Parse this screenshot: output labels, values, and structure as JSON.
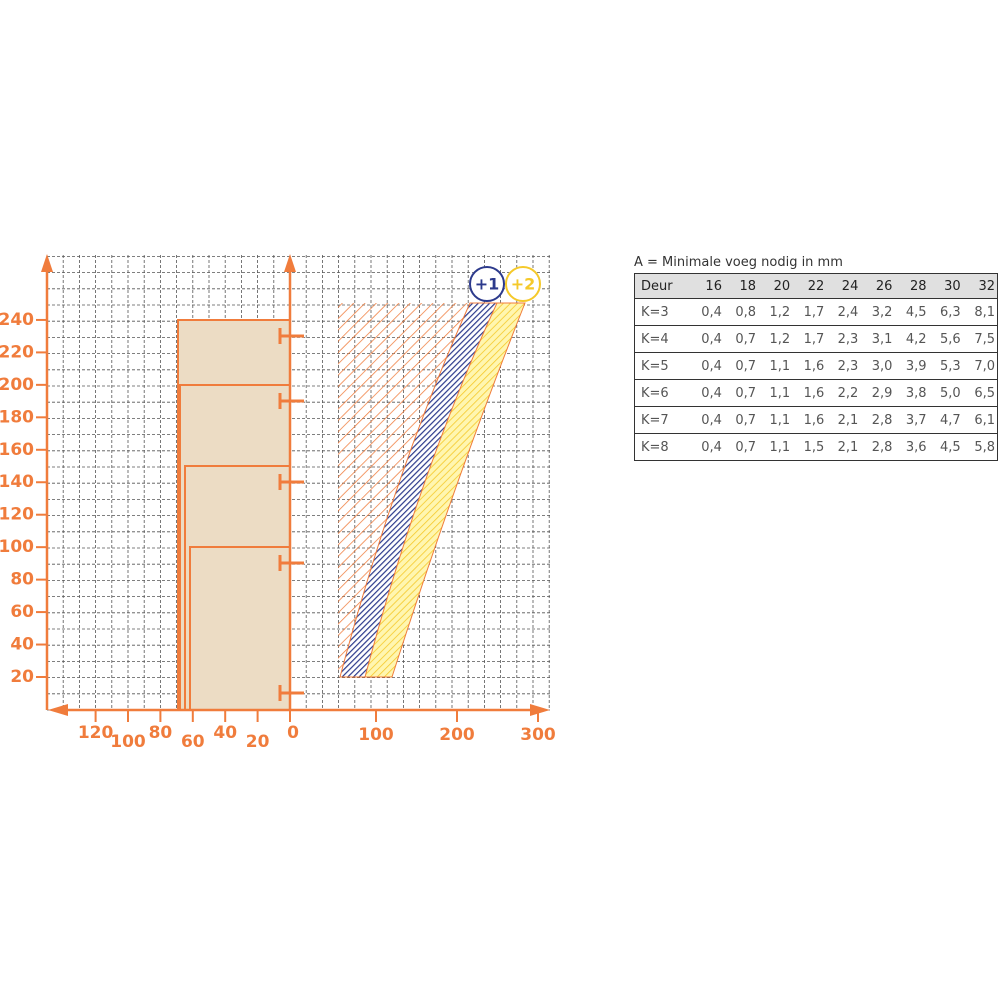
{
  "diagram": {
    "y_ticks": [
      20,
      40,
      60,
      80,
      100,
      120,
      140,
      160,
      180,
      200,
      220,
      240
    ],
    "left_x_ticks": [
      120,
      100,
      80,
      60,
      40,
      20,
      0
    ],
    "right_x_ticks": [
      100,
      200,
      300
    ],
    "badges": [
      "+1",
      "+2"
    ]
  },
  "table": {
    "caption": "A = Minimale voeg nodig in mm",
    "header": [
      "Deur",
      "16",
      "18",
      "20",
      "22",
      "24",
      "26",
      "28",
      "30",
      "32"
    ],
    "rows": [
      [
        "K=3",
        "0,4",
        "0,8",
        "1,2",
        "1,7",
        "2,4",
        "3,2",
        "4,5",
        "6,3",
        "8,1"
      ],
      [
        "K=4",
        "0,4",
        "0,7",
        "1,2",
        "1,7",
        "2,3",
        "3,1",
        "4,2",
        "5,6",
        "7,5"
      ],
      [
        "K=5",
        "0,4",
        "0,7",
        "1,1",
        "1,6",
        "2,3",
        "3,0",
        "3,9",
        "5,3",
        "7,0"
      ],
      [
        "K=6",
        "0,4",
        "0,7",
        "1,1",
        "1,6",
        "2,2",
        "2,9",
        "3,8",
        "5,0",
        "6,5"
      ],
      [
        "K=7",
        "0,4",
        "0,7",
        "1,1",
        "1,6",
        "2,1",
        "2,8",
        "3,7",
        "4,7",
        "6,1"
      ],
      [
        "K=8",
        "0,4",
        "0,7",
        "1,1",
        "1,5",
        "2,1",
        "2,8",
        "3,6",
        "4,5",
        "5,8"
      ]
    ]
  }
}
